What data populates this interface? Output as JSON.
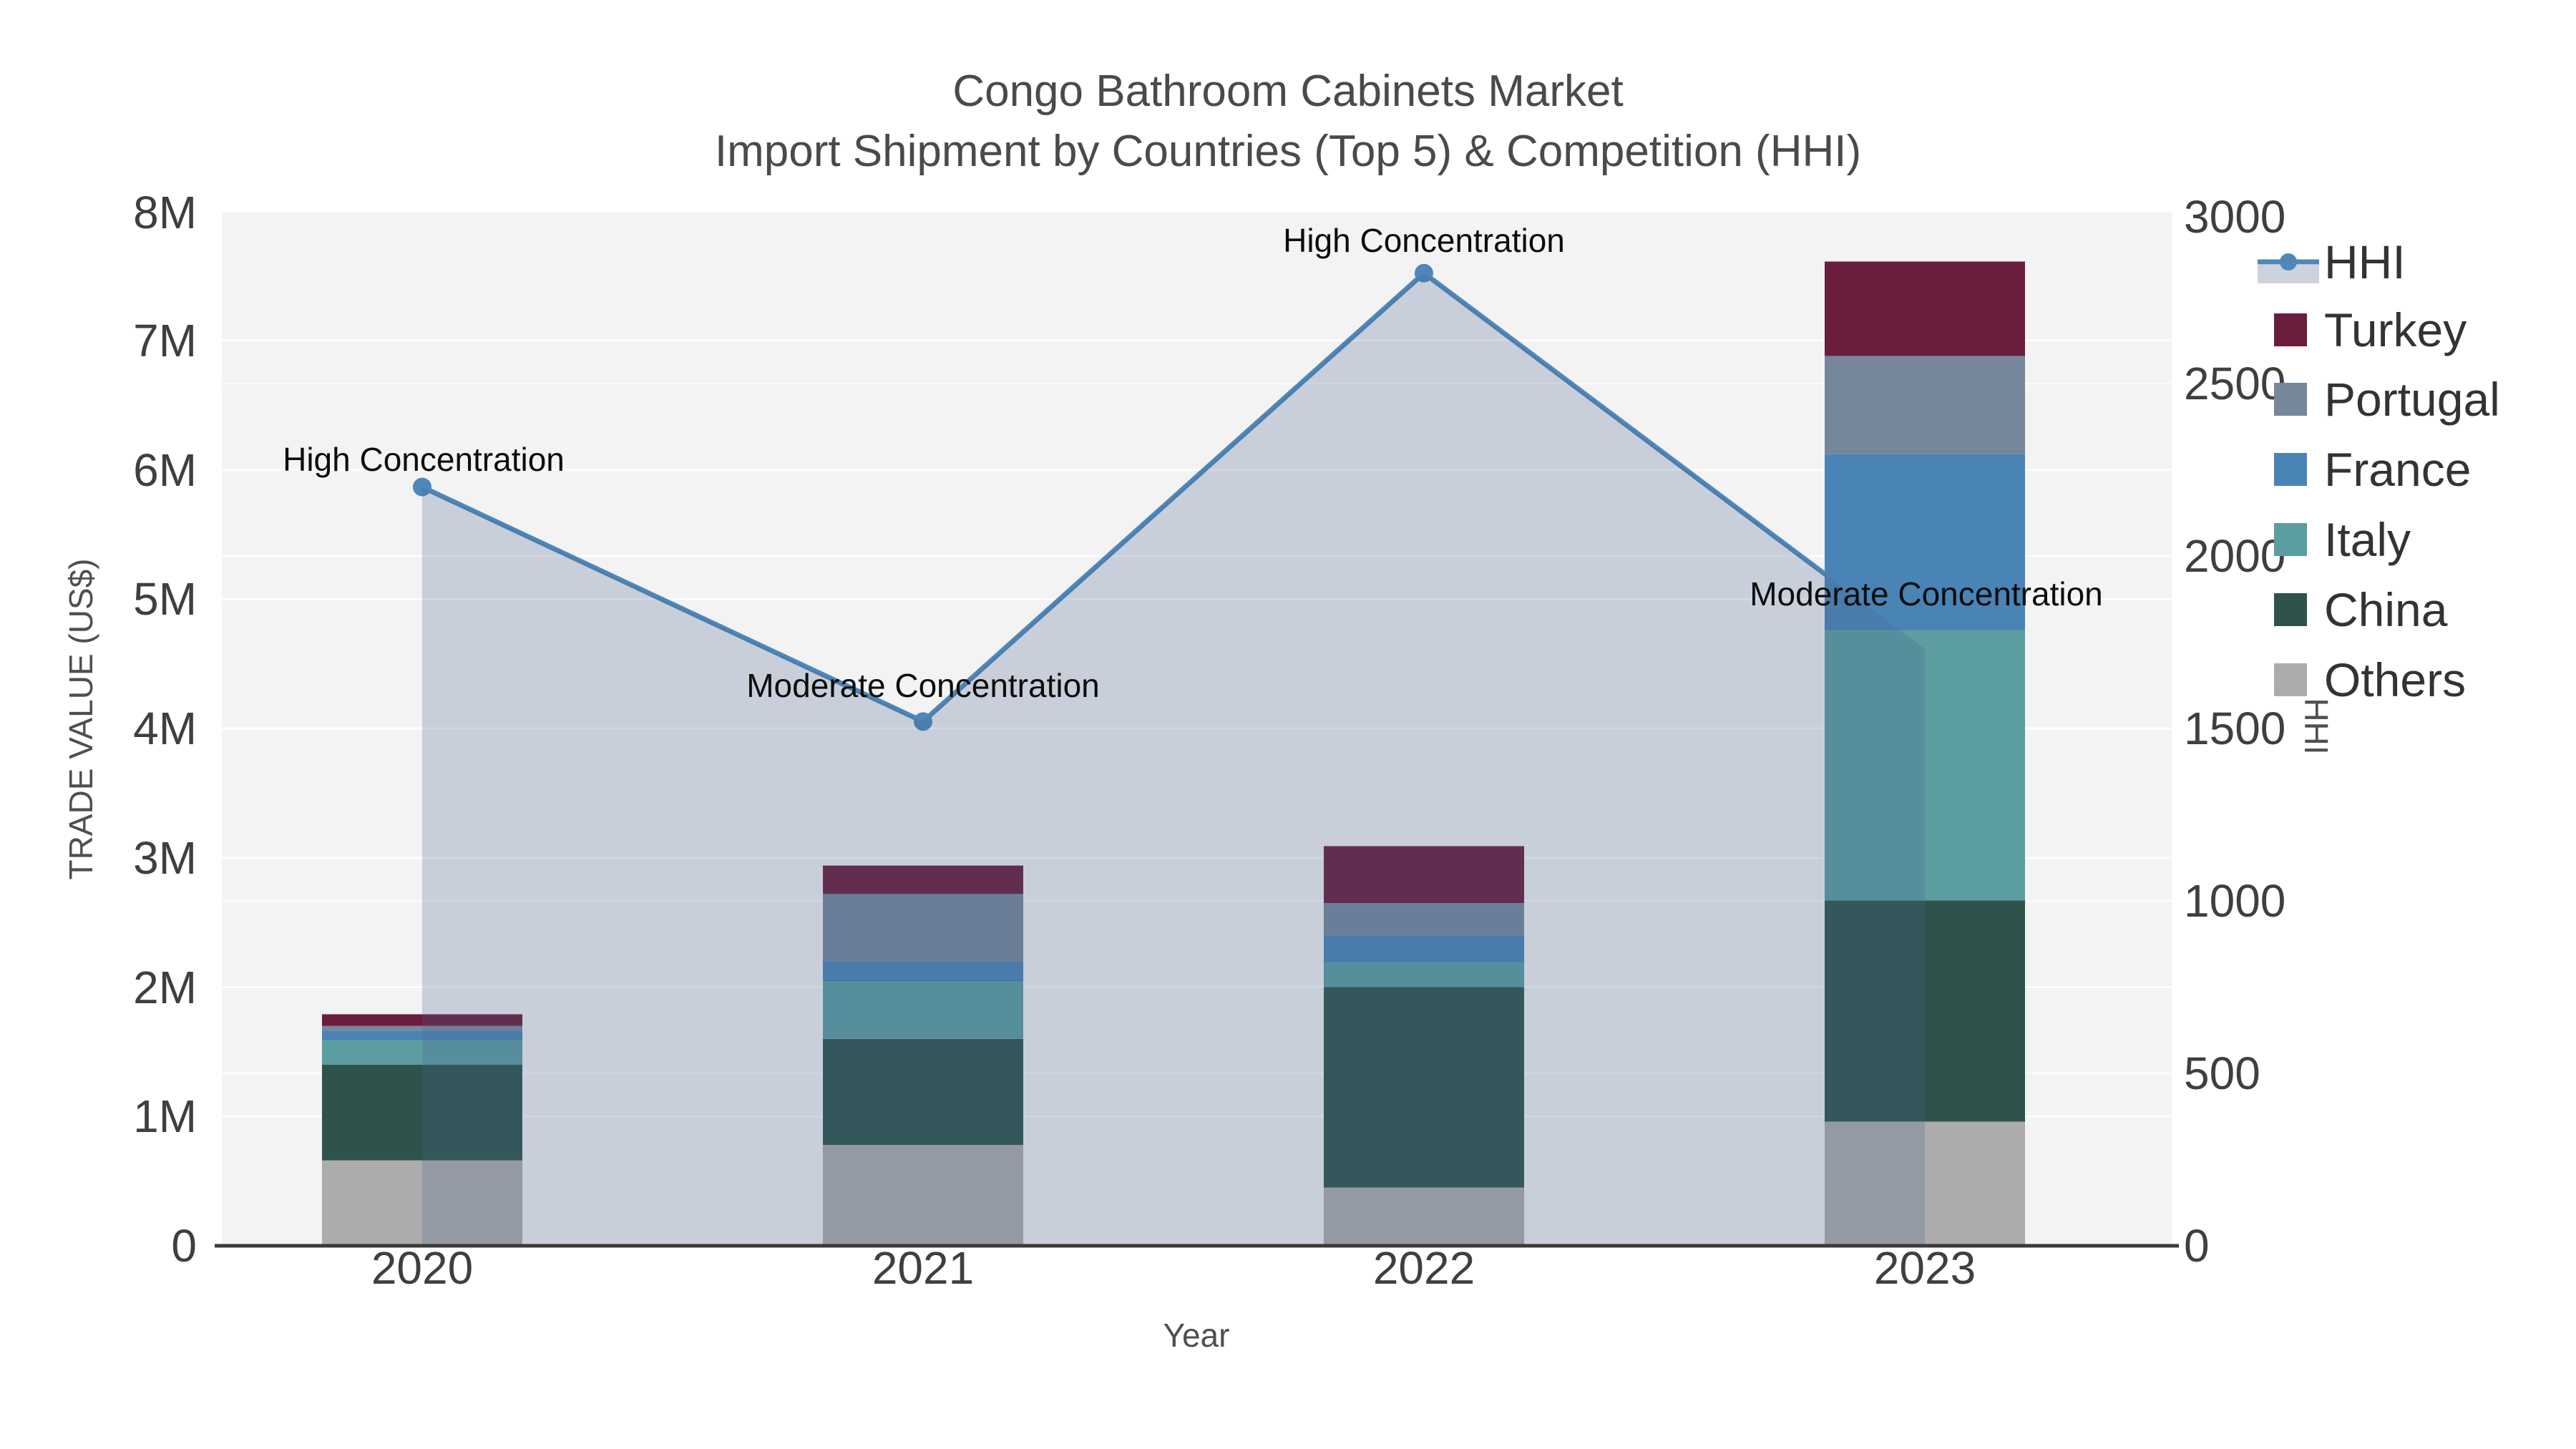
{
  "chart_data": {
    "type": "bar",
    "subtype": "stacked-bar-with-line-overlay-and-area-fill",
    "title": "Congo Bathroom Cabinets Market",
    "subtitle": "Import Shipment by Countries (Top 5) & Competition (HHI)",
    "xlabel": "Year",
    "ylabel_left": "TRADE VALUE (US$)",
    "ylabel_right": "HHI",
    "categories": [
      "2020",
      "2021",
      "2022",
      "2023"
    ],
    "value_unit": "million US$ (estimated from axis)",
    "ylim_left": [
      0,
      8000000
    ],
    "ylim_right": [
      0,
      3000
    ],
    "yticks_left": [
      "0",
      "1M",
      "2M",
      "3M",
      "4M",
      "5M",
      "6M",
      "7M",
      "8M"
    ],
    "yticks_right": [
      "0",
      "500",
      "1000",
      "1500",
      "2000",
      "2500",
      "3000"
    ],
    "grid": true,
    "plot_bg": "#F3F3F4",
    "grid_color": "#FFFFFF",
    "series": [
      {
        "name": "Others",
        "color": "#ACACAC",
        "values": [
          0.66,
          0.78,
          0.45,
          0.96
        ]
      },
      {
        "name": "China",
        "color": "#2E534C",
        "values": [
          0.74,
          0.82,
          1.55,
          1.71
        ]
      },
      {
        "name": "Italy",
        "color": "#5C9DA0",
        "values": [
          0.19,
          0.44,
          0.19,
          2.09
        ]
      },
      {
        "name": "France",
        "color": "#4A83B6",
        "values": [
          0.07,
          0.16,
          0.21,
          1.36
        ]
      },
      {
        "name": "Portugal",
        "color": "#76879B",
        "values": [
          0.04,
          0.52,
          0.25,
          0.76
        ]
      },
      {
        "name": "Turkey",
        "color": "#6B1D3D",
        "values": [
          0.09,
          0.22,
          0.44,
          0.73
        ]
      }
    ],
    "hhi": {
      "name": "HHI",
      "color": "#4E87B9",
      "fill_color": "#46648C",
      "fill_opacity": 0.25,
      "values": [
        2200,
        1520,
        2820,
        1730
      ],
      "annotations": [
        "High Concentration",
        "Moderate Concentration",
        "High Concentration",
        "Moderate Concentration"
      ]
    },
    "legend": [
      {
        "label": "HHI",
        "color": "#4E87B9",
        "type": "line",
        "fill_swatch": "#CCD3DE"
      },
      {
        "label": "Turkey",
        "color": "#6B1D3D",
        "type": "square"
      },
      {
        "label": "Portugal",
        "color": "#76879B",
        "type": "square"
      },
      {
        "label": "France",
        "color": "#4A83B6",
        "type": "square"
      },
      {
        "label": "Italy",
        "color": "#5C9DA0",
        "type": "square"
      },
      {
        "label": "China",
        "color": "#2E534C",
        "type": "square"
      },
      {
        "label": "Others",
        "color": "#ACACAC",
        "type": "square"
      }
    ],
    "legend_position": "outside-right-top"
  }
}
